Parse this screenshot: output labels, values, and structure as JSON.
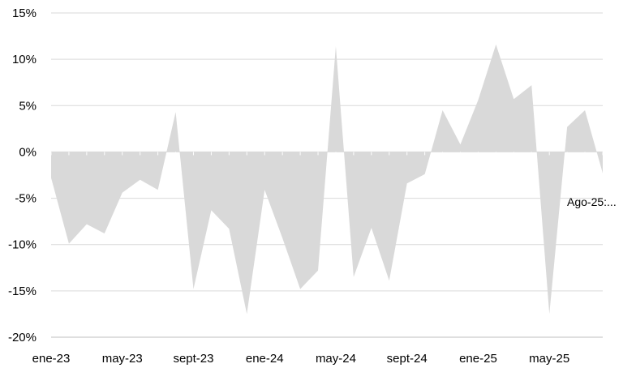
{
  "chart_data": {
    "type": "area",
    "x_tick_labels": [
      "ene-23",
      "may-23",
      "sept-23",
      "ene-24",
      "may-24",
      "sept-24",
      "ene-25",
      "may-25"
    ],
    "y_tick_labels": [
      "15%",
      "10%",
      "5%",
      "0%",
      "-5%",
      "-10%",
      "-15%",
      "-20%"
    ],
    "ylim": [
      -20,
      15
    ],
    "y_ticks": [
      15,
      10,
      5,
      0,
      -5,
      -10,
      -15,
      -20
    ],
    "x_tick_every": 4,
    "grid": true,
    "colors": {
      "area": "#d9d9d9",
      "grid": "#d9d9d9",
      "axis": "#bfbfbf"
    },
    "series": [
      {
        "values": [
          {
            "x": "ene-23",
            "y": -2.8
          },
          {
            "x": "feb-23",
            "y": -9.9
          },
          {
            "x": "mar-23",
            "y": -7.8
          },
          {
            "x": "abr-23",
            "y": -8.8
          },
          {
            "x": "may-23",
            "y": -4.4
          },
          {
            "x": "jun-23",
            "y": -3.0
          },
          {
            "x": "jul-23",
            "y": -4.1
          },
          {
            "x": "ago-23",
            "y": 4.3
          },
          {
            "x": "sept-23",
            "y": -14.8
          },
          {
            "x": "oct-23",
            "y": -6.3
          },
          {
            "x": "nov-23",
            "y": -8.3
          },
          {
            "x": "dic-23",
            "y": -17.5
          },
          {
            "x": "ene-24",
            "y": -4.1
          },
          {
            "x": "feb-24",
            "y": -9.3
          },
          {
            "x": "mar-24",
            "y": -14.8
          },
          {
            "x": "abr-24",
            "y": -12.8
          },
          {
            "x": "may-24",
            "y": 11.4
          },
          {
            "x": "jun-24",
            "y": -13.5
          },
          {
            "x": "jul-24",
            "y": -8.2
          },
          {
            "x": "ago-24",
            "y": -13.9
          },
          {
            "x": "sept-24",
            "y": -3.4
          },
          {
            "x": "oct-24",
            "y": -2.4
          },
          {
            "x": "nov-24",
            "y": 4.5
          },
          {
            "x": "dic-24",
            "y": 0.8
          },
          {
            "x": "ene-25",
            "y": 5.6
          },
          {
            "x": "feb-25",
            "y": 11.6
          },
          {
            "x": "mar-25",
            "y": 5.7
          },
          {
            "x": "abr-25",
            "y": 7.2
          },
          {
            "x": "may-25",
            "y": -17.5
          },
          {
            "x": "jun-25",
            "y": 2.7
          },
          {
            "x": "jul-25",
            "y": 4.5
          },
          {
            "x": "ago-25",
            "y": -2.3
          }
        ]
      }
    ],
    "annotations": [
      {
        "text": "Ago-25:...",
        "x": "ago-25"
      }
    ]
  }
}
